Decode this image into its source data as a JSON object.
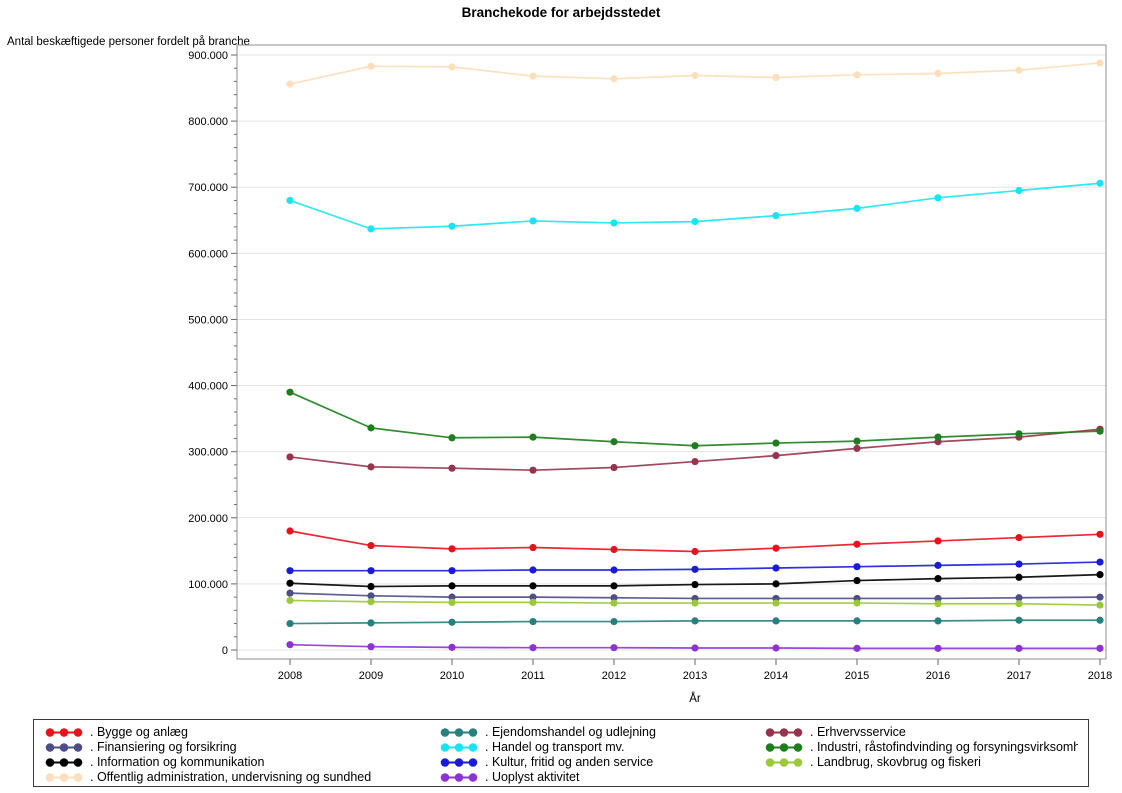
{
  "chart_data": {
    "type": "line",
    "title": "Branchekode for arbejdsstedet",
    "ylabel": "Antal beskæftigede personer fordelt på branche",
    "xlabel": "År",
    "x": [
      "2008",
      "2009",
      "2010",
      "2011",
      "2012",
      "2013",
      "2014",
      "2015",
      "2016",
      "2017",
      "2018"
    ],
    "ylim": [
      0,
      900000
    ],
    "ytick_step": 100000,
    "ytick_labels": [
      "0",
      "100.000",
      "200.000",
      "300.000",
      "400.000",
      "500.000",
      "600.000",
      "700.000",
      "800.000",
      "900.000"
    ],
    "grid": "horizontal",
    "legend_position": "bottom",
    "marker": "filled-circle",
    "series": [
      {
        "label": ". Bygge og anlæg",
        "color": "#e8121d",
        "values": [
          180000,
          158000,
          153000,
          155000,
          152000,
          149000,
          154000,
          160000,
          165000,
          170000,
          175000
        ]
      },
      {
        "label": ". Ejendomshandel og udlejning",
        "color": "#287f7f",
        "values": [
          40000,
          41000,
          42000,
          43000,
          43000,
          44000,
          44000,
          44000,
          44000,
          45000,
          45000
        ]
      },
      {
        "label": ". Erhvervsservice",
        "color": "#96344e",
        "values": [
          292000,
          277000,
          275000,
          272000,
          276000,
          285000,
          294000,
          305000,
          315000,
          322000,
          334000
        ]
      },
      {
        "label": ". Finansiering og forsikring",
        "color": "#4d4d87",
        "values": [
          86000,
          82000,
          80000,
          80000,
          79000,
          78000,
          78000,
          78000,
          78000,
          79000,
          80000
        ]
      },
      {
        "label": ". Handel og transport mv.",
        "color": "#1ae4f2",
        "values": [
          680000,
          637000,
          641000,
          649000,
          646000,
          648000,
          657000,
          668000,
          684000,
          695000,
          706000
        ]
      },
      {
        "label": ". Industri, råstofindvinding og forsyningsvirksomhed",
        "color": "#1e7d1e",
        "values": [
          390000,
          336000,
          321000,
          322000,
          315000,
          309000,
          313000,
          316000,
          322000,
          327000,
          331000
        ]
      },
      {
        "label": ". Information og kommunikation",
        "color": "#000000",
        "values": [
          101000,
          96000,
          97000,
          97000,
          97000,
          99000,
          100000,
          105000,
          108000,
          110000,
          114000
        ]
      },
      {
        "label": ". Kultur, fritid og anden service",
        "color": "#1a1ad9",
        "values": [
          120000,
          120000,
          120000,
          121000,
          121000,
          122000,
          124000,
          126000,
          128000,
          130000,
          133000
        ]
      },
      {
        "label": ". Landbrug, skovbrug og fiskeri",
        "color": "#9bc93c",
        "values": [
          75000,
          73000,
          72000,
          72000,
          71000,
          71000,
          71000,
          71000,
          70000,
          70000,
          68000
        ]
      },
      {
        "label": ". Offentlig administration, undervisning og sundhed",
        "color": "#fadfba",
        "values": [
          856000,
          883000,
          882000,
          868000,
          864000,
          869000,
          866000,
          870000,
          872000,
          877000,
          888000
        ]
      },
      {
        "label": ". Uoplyst aktivitet",
        "color": "#8d33d6",
        "values": [
          8000,
          5000,
          4000,
          3500,
          3500,
          3000,
          3000,
          2500,
          2500,
          2500,
          2500
        ]
      }
    ],
    "frame_color": "#8f8f8f",
    "gridline_color": "#e3e3e3",
    "tick_color": "#666666"
  }
}
